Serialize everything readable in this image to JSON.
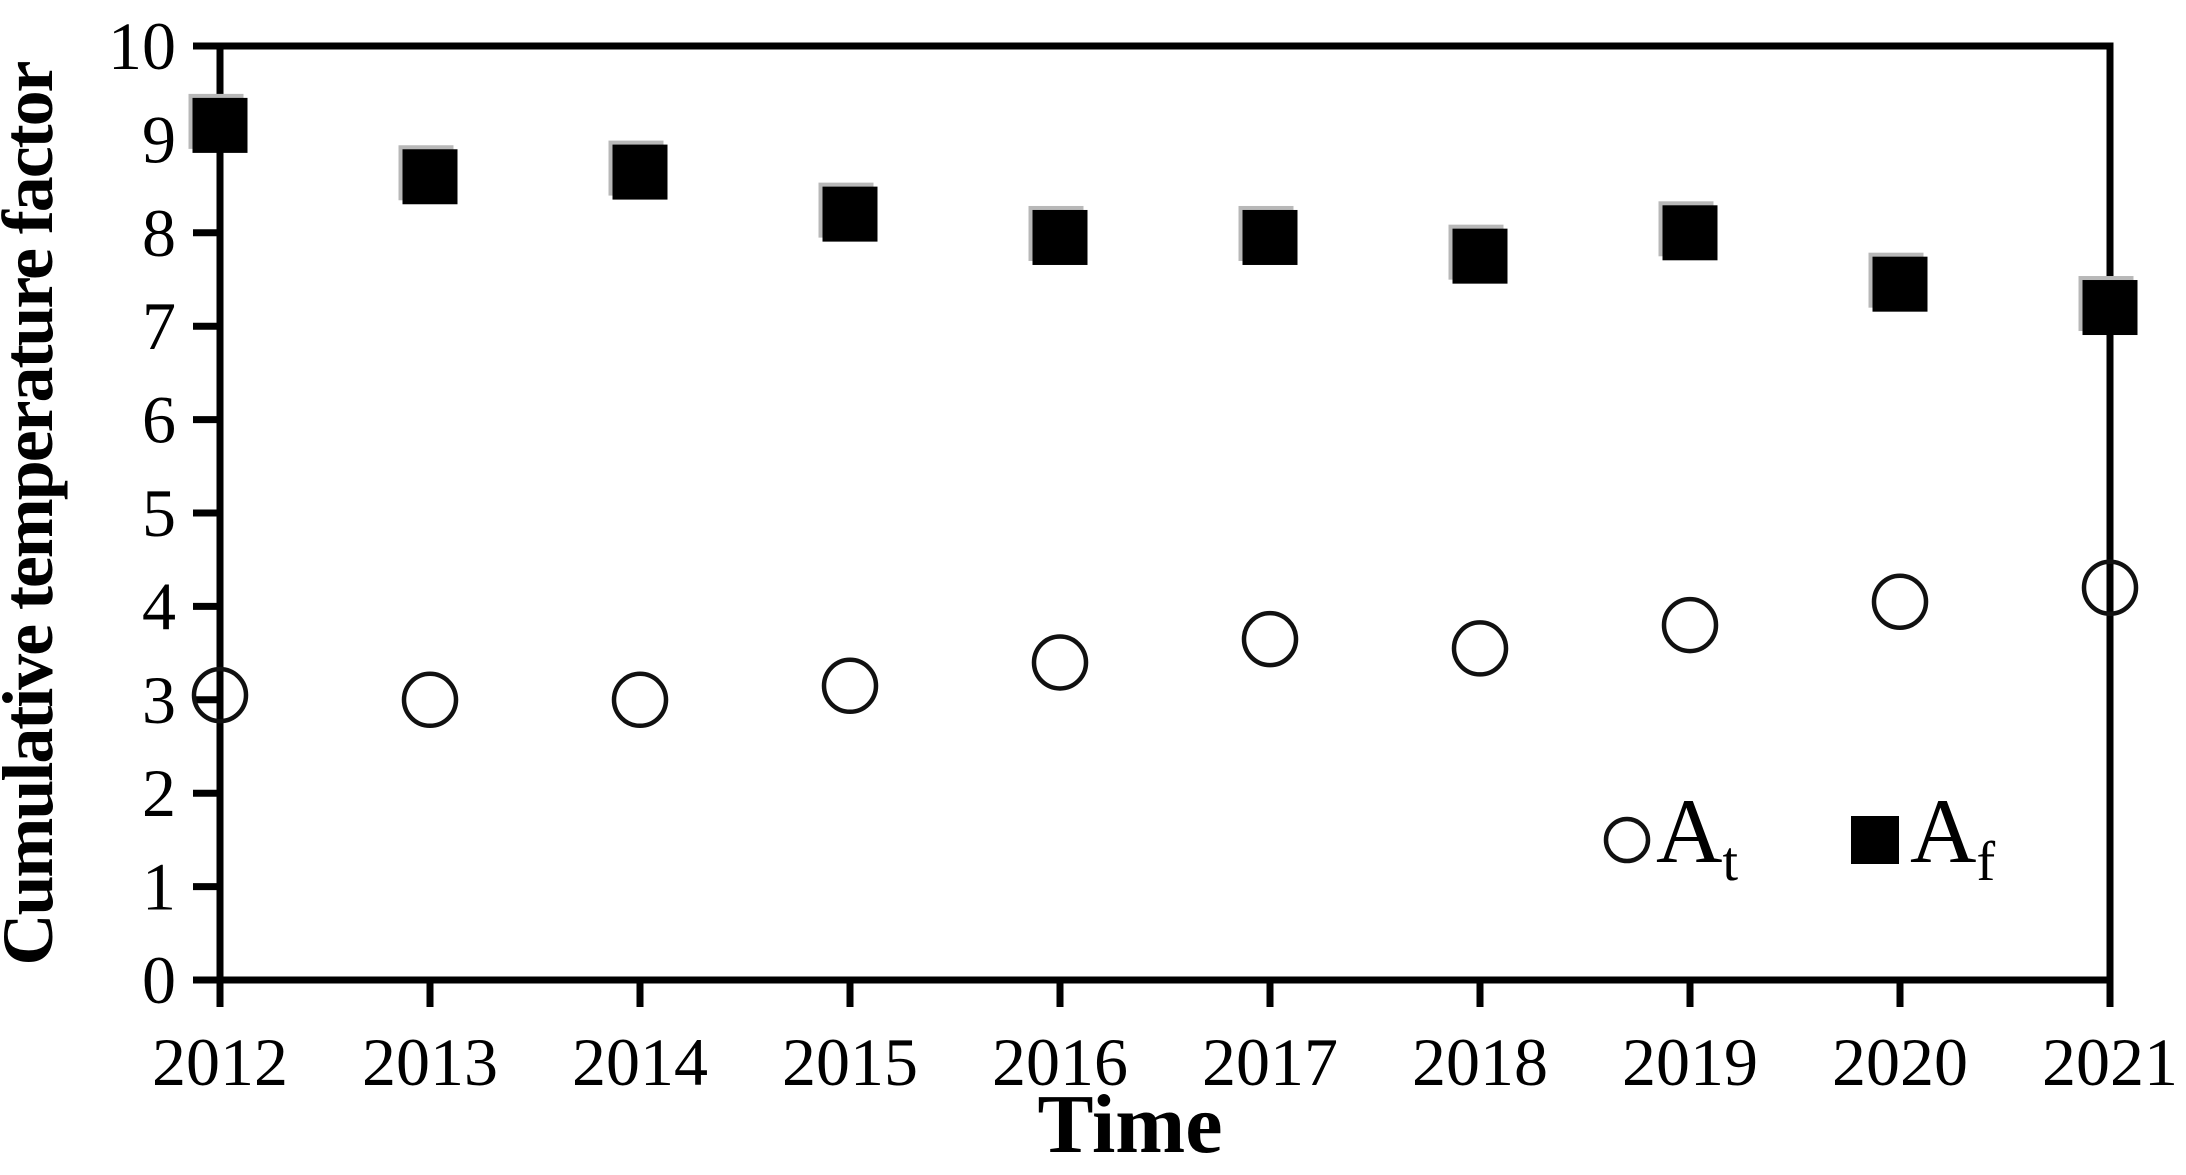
{
  "figure": {
    "x_axis_label": "Time",
    "y_axis_label": "Cumulative temperature factor",
    "legend": [
      {
        "series": "At",
        "label_main": "A",
        "label_sub": "t",
        "marker": "open-circle"
      },
      {
        "series": "Af",
        "label_main": "A",
        "label_sub": "f",
        "marker": "filled-square"
      }
    ],
    "colors": {
      "marker": "#000000",
      "background": "#ffffff"
    }
  },
  "chart_data": {
    "type": "scatter",
    "title": "",
    "xlabel": "Time",
    "ylabel": "Cumulative temperature factor",
    "x": [
      2012,
      2013,
      2014,
      2015,
      2016,
      2017,
      2018,
      2019,
      2020,
      2021
    ],
    "x_tick_labels": [
      "2012",
      "2013",
      "2014",
      "2015",
      "2016",
      "2017",
      "2018",
      "2019",
      "2020",
      "2021"
    ],
    "y_ticks": [
      0,
      1,
      2,
      3,
      4,
      5,
      6,
      7,
      8,
      9,
      10
    ],
    "ylim": [
      0,
      10
    ],
    "grid": false,
    "legend_position": "inside lower-right",
    "series": [
      {
        "name": "At",
        "marker": "open-circle",
        "values": [
          3.05,
          3.0,
          3.0,
          3.15,
          3.4,
          3.65,
          3.55,
          3.8,
          4.05,
          4.2
        ]
      },
      {
        "name": "Af",
        "marker": "filled-square",
        "values": [
          9.15,
          8.6,
          8.65,
          8.2,
          7.95,
          7.95,
          7.75,
          8.0,
          7.45,
          7.2
        ]
      }
    ]
  }
}
